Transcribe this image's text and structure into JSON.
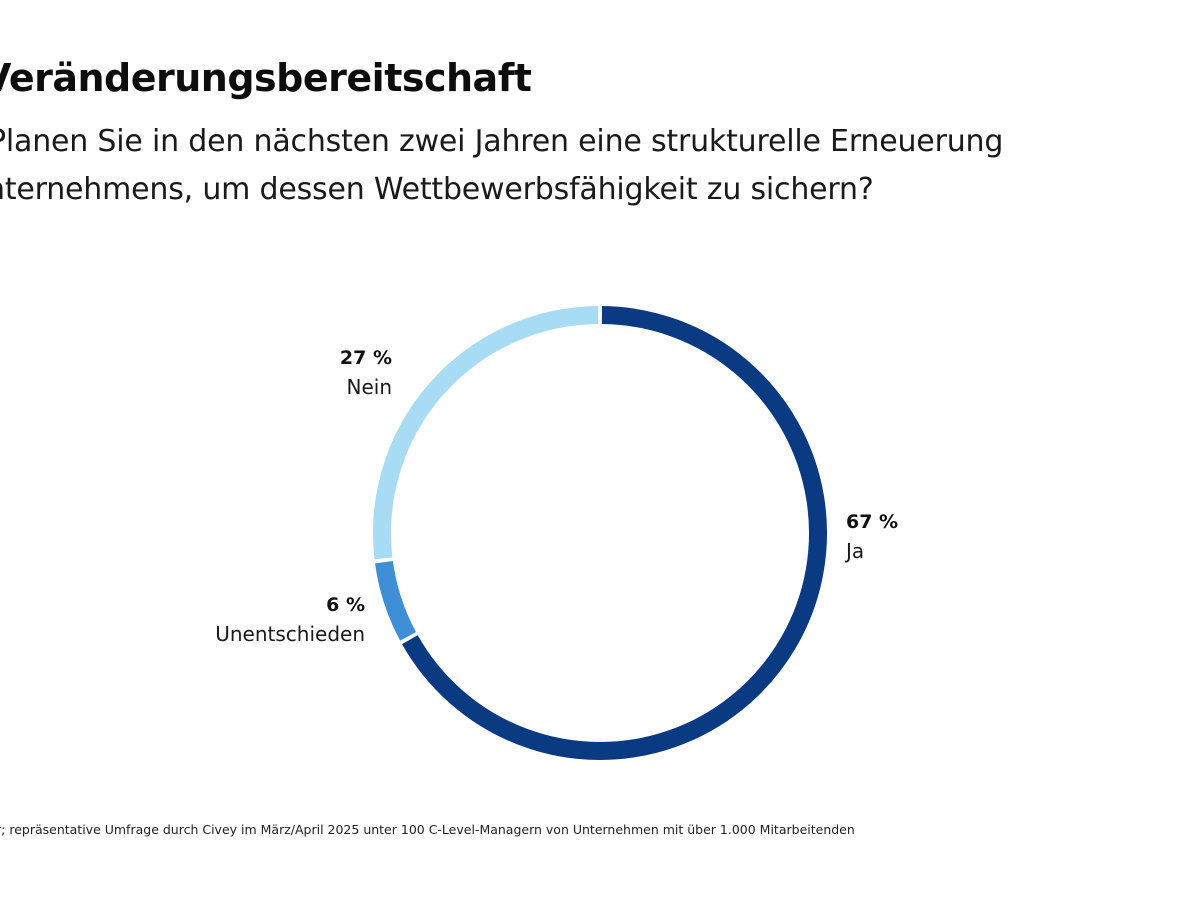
{
  "header": {
    "title": "Veränderungsbereitschaft",
    "question_line1": "Planen Sie in den nächsten zwei Jahren eine strukturelle Erneuerung",
    "question_line2": "nternehmens, um dessen Wettbewerbsfähigkeit zu sichern?"
  },
  "footnote": "r; repräsentative Umfrage durch Civey im März/April 2025 unter 100 C-Level-Managern von Unternehmen mit über 1.000 Mitarbeitenden",
  "chart_data": {
    "type": "pie",
    "variant": "donut",
    "title": "Veränderungsbereitschaft",
    "subtitle": "Planen Sie in den nächsten zwei Jahren eine strukturelle Erneuerung … Unternehmens, um dessen Wettbewerbsfähigkeit zu sichern?",
    "unit": "%",
    "start": "top",
    "direction": "clockwise",
    "slices": [
      {
        "label": "Ja",
        "value": 67,
        "value_label": "67 %",
        "color": "#0a3a82"
      },
      {
        "label": "Unentschieden",
        "value": 6,
        "value_label": "6 %",
        "color": "#3f8fd6"
      },
      {
        "label": "Nein",
        "value": 27,
        "value_label": "27 %",
        "color": "#a8dcf5"
      }
    ]
  }
}
